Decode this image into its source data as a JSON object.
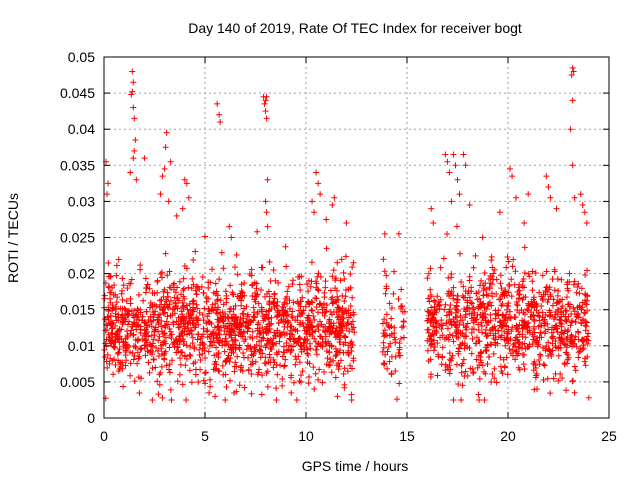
{
  "chart_data": {
    "type": "scatter",
    "title": "Day 140 of 2019, Rate Of TEC Index for receiver bogt",
    "xlabel": "GPS time / hours",
    "ylabel": "ROTI / TECUs",
    "xlim": [
      0,
      25
    ],
    "ylim": [
      0,
      0.05
    ],
    "xticks": [
      0,
      5,
      10,
      15,
      20,
      25
    ],
    "xtick_labels": [
      "0",
      "5",
      "10",
      "15",
      "20",
      "25"
    ],
    "yticks": [
      0,
      0.005,
      0.01,
      0.015,
      0.02,
      0.025,
      0.03,
      0.035,
      0.04,
      0.045,
      0.05
    ],
    "ytick_labels": [
      "0",
      "0.005",
      "0.01",
      "0.015",
      "0.02",
      "0.025",
      "0.03",
      "0.035",
      "0.04",
      "0.045",
      "0.05"
    ],
    "grid": true,
    "marker": "+",
    "color": "#ff0000",
    "series": [
      {
        "name": "ROTI",
        "segments": [
          {
            "x_range": [
              0.0,
              12.4
            ],
            "y_center": 0.0125,
            "y_spread": 0.009,
            "count": 1500
          },
          {
            "x_range": [
              13.8,
              14.9
            ],
            "y_center": 0.012,
            "y_spread": 0.008,
            "count": 70
          },
          {
            "x_range": [
              16.0,
              24.0
            ],
            "y_center": 0.013,
            "y_spread": 0.009,
            "count": 900
          }
        ],
        "outliers": [
          {
            "x": 0.1,
            "y": 0.0355
          },
          {
            "x": 0.2,
            "y": 0.0325
          },
          {
            "x": 0.15,
            "y": 0.031
          },
          {
            "x": 1.4,
            "y": 0.048
          },
          {
            "x": 1.45,
            "y": 0.0465
          },
          {
            "x": 1.4,
            "y": 0.0452
          },
          {
            "x": 1.35,
            "y": 0.0448
          },
          {
            "x": 1.45,
            "y": 0.043
          },
          {
            "x": 1.5,
            "y": 0.0415
          },
          {
            "x": 1.55,
            "y": 0.0385
          },
          {
            "x": 1.5,
            "y": 0.037
          },
          {
            "x": 1.45,
            "y": 0.036
          },
          {
            "x": 2.0,
            "y": 0.036
          },
          {
            "x": 1.3,
            "y": 0.034
          },
          {
            "x": 1.6,
            "y": 0.033
          },
          {
            "x": 3.1,
            "y": 0.0395
          },
          {
            "x": 3.05,
            "y": 0.0375
          },
          {
            "x": 3.0,
            "y": 0.0345
          },
          {
            "x": 2.9,
            "y": 0.0335
          },
          {
            "x": 3.3,
            "y": 0.0355
          },
          {
            "x": 2.8,
            "y": 0.031
          },
          {
            "x": 3.2,
            "y": 0.03
          },
          {
            "x": 3.6,
            "y": 0.028
          },
          {
            "x": 4.0,
            "y": 0.033
          },
          {
            "x": 4.1,
            "y": 0.0325
          },
          {
            "x": 4.2,
            "y": 0.0305
          },
          {
            "x": 3.9,
            "y": 0.029
          },
          {
            "x": 5.6,
            "y": 0.0435
          },
          {
            "x": 5.7,
            "y": 0.042
          },
          {
            "x": 5.75,
            "y": 0.041
          },
          {
            "x": 6.2,
            "y": 0.0265
          },
          {
            "x": 6.3,
            "y": 0.025
          },
          {
            "x": 7.9,
            "y": 0.0445
          },
          {
            "x": 8.0,
            "y": 0.044
          },
          {
            "x": 8.05,
            "y": 0.0445
          },
          {
            "x": 7.95,
            "y": 0.0435
          },
          {
            "x": 8.0,
            "y": 0.0425
          },
          {
            "x": 8.05,
            "y": 0.0415
          },
          {
            "x": 8.1,
            "y": 0.033
          },
          {
            "x": 8.0,
            "y": 0.03
          },
          {
            "x": 8.05,
            "y": 0.0285
          },
          {
            "x": 8.1,
            "y": 0.0265
          },
          {
            "x": 10.5,
            "y": 0.034
          },
          {
            "x": 10.6,
            "y": 0.0325
          },
          {
            "x": 10.7,
            "y": 0.031
          },
          {
            "x": 10.3,
            "y": 0.03
          },
          {
            "x": 10.4,
            "y": 0.0285
          },
          {
            "x": 11.4,
            "y": 0.0305
          },
          {
            "x": 11.3,
            "y": 0.0295
          },
          {
            "x": 12.0,
            "y": 0.027
          },
          {
            "x": 11.0,
            "y": 0.0275
          },
          {
            "x": 13.9,
            "y": 0.0255
          },
          {
            "x": 14.6,
            "y": 0.0255
          },
          {
            "x": 16.2,
            "y": 0.029
          },
          {
            "x": 16.3,
            "y": 0.027
          },
          {
            "x": 16.9,
            "y": 0.0365
          },
          {
            "x": 17.0,
            "y": 0.0355
          },
          {
            "x": 17.1,
            "y": 0.034
          },
          {
            "x": 17.3,
            "y": 0.0365
          },
          {
            "x": 17.4,
            "y": 0.035
          },
          {
            "x": 17.5,
            "y": 0.033
          },
          {
            "x": 17.6,
            "y": 0.031
          },
          {
            "x": 17.2,
            "y": 0.03
          },
          {
            "x": 17.8,
            "y": 0.0365
          },
          {
            "x": 17.9,
            "y": 0.035
          },
          {
            "x": 18.1,
            "y": 0.0295
          },
          {
            "x": 20.1,
            "y": 0.0345
          },
          {
            "x": 20.2,
            "y": 0.0335
          },
          {
            "x": 20.4,
            "y": 0.0305
          },
          {
            "x": 19.6,
            "y": 0.0285
          },
          {
            "x": 20.8,
            "y": 0.027
          },
          {
            "x": 21.0,
            "y": 0.031
          },
          {
            "x": 21.9,
            "y": 0.0335
          },
          {
            "x": 22.0,
            "y": 0.032
          },
          {
            "x": 22.1,
            "y": 0.0305
          },
          {
            "x": 22.4,
            "y": 0.029
          },
          {
            "x": 23.2,
            "y": 0.0485
          },
          {
            "x": 23.25,
            "y": 0.048
          },
          {
            "x": 23.15,
            "y": 0.0475
          },
          {
            "x": 23.2,
            "y": 0.044
          },
          {
            "x": 23.1,
            "y": 0.04
          },
          {
            "x": 23.2,
            "y": 0.035
          },
          {
            "x": 23.3,
            "y": 0.0305
          },
          {
            "x": 23.6,
            "y": 0.031
          },
          {
            "x": 23.7,
            "y": 0.0295
          },
          {
            "x": 23.8,
            "y": 0.0285
          },
          {
            "x": 23.9,
            "y": 0.027
          },
          {
            "x": 6.0,
            "y": 0.0025
          },
          {
            "x": 5.5,
            "y": 0.003
          },
          {
            "x": 17.3,
            "y": 0.0025
          },
          {
            "x": 24.0,
            "y": 0.0028
          },
          {
            "x": 23.3,
            "y": 0.0035
          }
        ]
      }
    ]
  }
}
